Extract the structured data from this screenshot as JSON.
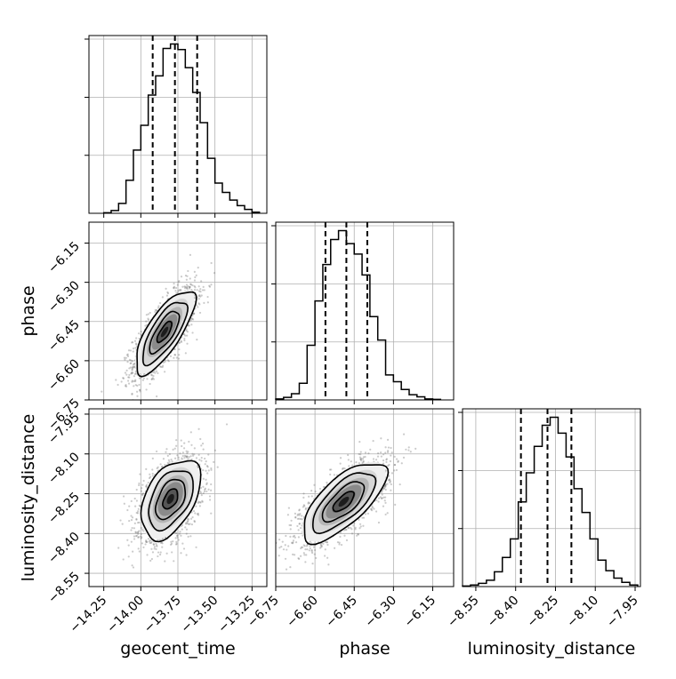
{
  "figure": {
    "type": "corner-plot"
  },
  "chart_data": {
    "type": "corner",
    "parameters": [
      {
        "name": "geocent_time",
        "label": "geocent_time",
        "range": [
          -14.35,
          -13.15
        ],
        "ticks": [
          -14.25,
          -14.0,
          -13.75,
          -13.5,
          -13.25
        ],
        "tick_labels": [
          "−14.25",
          "−14.00",
          "−13.75",
          "−13.50",
          "−13.25"
        ],
        "quantiles": [
          -13.92,
          -13.77,
          -13.62
        ],
        "hist_bins": [
          -14.25,
          -14.2,
          -14.15,
          -14.1,
          -14.05,
          -14.0,
          -13.95,
          -13.9,
          -13.85,
          -13.8,
          -13.75,
          -13.7,
          -13.65,
          -13.6,
          -13.55,
          -13.5,
          -13.45,
          -13.4,
          -13.35,
          -13.3,
          -13.25,
          -13.2
        ],
        "hist_counts": [
          1,
          5,
          18,
          60,
          115,
          160,
          215,
          250,
          300,
          308,
          298,
          265,
          220,
          165,
          100,
          55,
          38,
          24,
          14,
          7,
          2
        ]
      },
      {
        "name": "phase",
        "label": "phase",
        "range": [
          -6.75,
          -6.07
        ],
        "ticks": [
          -6.75,
          -6.6,
          -6.45,
          -6.3,
          -6.15
        ],
        "tick_labels": [
          "−6.75",
          "−6.60",
          "−6.45",
          "−6.30",
          "−6.15"
        ],
        "quantiles": [
          -6.56,
          -6.48,
          -6.4
        ],
        "hist_bins": [
          -6.75,
          -6.72,
          -6.69,
          -6.66,
          -6.63,
          -6.6,
          -6.57,
          -6.54,
          -6.51,
          -6.48,
          -6.45,
          -6.42,
          -6.39,
          -6.36,
          -6.33,
          -6.3,
          -6.27,
          -6.24,
          -6.21,
          -6.18,
          -6.15,
          -6.12
        ],
        "hist_counts": [
          2,
          5,
          12,
          32,
          105,
          190,
          260,
          308,
          325,
          300,
          280,
          240,
          160,
          115,
          48,
          35,
          20,
          10,
          6,
          2,
          1
        ]
      },
      {
        "name": "luminosity_distance",
        "label": "luminosity_distance",
        "range": [
          -8.6,
          -7.93
        ],
        "ticks": [
          -8.55,
          -8.4,
          -8.25,
          -8.1,
          -7.95
        ],
        "tick_labels": [
          "−8.55",
          "−8.40",
          "−8.25",
          "−8.10",
          "−7.95"
        ],
        "quantiles": [
          -8.38,
          -8.28,
          -8.19
        ],
        "hist_bins": [
          -8.6,
          -8.57,
          -8.54,
          -8.51,
          -8.48,
          -8.45,
          -8.42,
          -8.39,
          -8.36,
          -8.33,
          -8.3,
          -8.27,
          -8.24,
          -8.21,
          -8.18,
          -8.15,
          -8.12,
          -8.09,
          -8.06,
          -8.03,
          -8.0,
          -7.97,
          -7.94
        ],
        "hist_counts": [
          1,
          3,
          6,
          12,
          28,
          55,
          90,
          160,
          215,
          265,
          305,
          320,
          290,
          245,
          185,
          140,
          90,
          50,
          30,
          16,
          8,
          3
        ]
      }
    ],
    "pairs": [
      {
        "x": "geocent_time",
        "y": "phase",
        "mean": [
          -13.84,
          -6.49
        ],
        "sigma": [
          0.1,
          0.08
        ],
        "correlation": 0.75
      },
      {
        "x": "geocent_time",
        "y": "luminosity_distance",
        "mean": [
          -13.8,
          -8.27
        ],
        "sigma": [
          0.1,
          0.075
        ],
        "correlation": 0.45
      },
      {
        "x": "phase",
        "y": "luminosity_distance",
        "mean": [
          -6.49,
          -8.28
        ],
        "sigma": [
          0.08,
          0.075
        ],
        "correlation": 0.7
      }
    ],
    "grid": true,
    "contour_levels_sigma": [
      0.5,
      1.0,
      1.5,
      2.0
    ],
    "colors": {
      "line": "#000000",
      "grid": "#b0b0b0",
      "scatter": "#6b6b6b"
    }
  }
}
